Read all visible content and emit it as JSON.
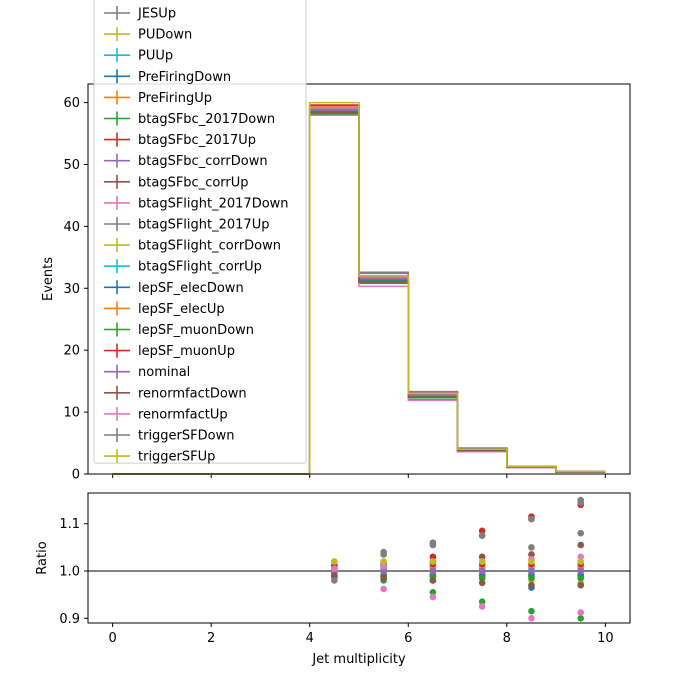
{
  "chart_data": [
    {
      "type": "line",
      "subtype": "step",
      "title": "",
      "xlabel": "",
      "ylabel": "Events",
      "xlim": [
        -0.5,
        10.5
      ],
      "ylim": [
        0,
        63
      ],
      "xticks": [
        "0",
        "2",
        "4",
        "6",
        "8",
        "10"
      ],
      "xtick_values": [
        0,
        2,
        4,
        6,
        8,
        10
      ],
      "yticks": [
        "0",
        "10",
        "20",
        "30",
        "40",
        "50",
        "60"
      ],
      "ytick_values": [
        0,
        10,
        20,
        30,
        40,
        50,
        60
      ],
      "bin_edges": [
        0,
        1,
        2,
        3,
        4,
        5,
        6,
        7,
        8,
        9,
        10
      ],
      "legend_position": "upper-left",
      "series": [
        {
          "name": "JESUp",
          "color": "#7f7f7f",
          "values": [
            0,
            0,
            0,
            0,
            58.6,
            31.8,
            13.0,
            4.0,
            1.2,
            0.4
          ]
        },
        {
          "name": "PUDown",
          "color": "#bcbd22",
          "values": [
            0,
            0,
            0,
            0,
            59.3,
            31.0,
            12.6,
            3.9,
            1.1,
            0.3
          ]
        },
        {
          "name": "PUUp",
          "color": "#17becf",
          "values": [
            0,
            0,
            0,
            0,
            58.6,
            31.4,
            12.7,
            3.9,
            1.1,
            0.3
          ]
        },
        {
          "name": "PreFiringDown",
          "color": "#1f77b4",
          "values": [
            0,
            0,
            0,
            0,
            58.8,
            31.5,
            12.7,
            3.9,
            1.1,
            0.3
          ]
        },
        {
          "name": "PreFiringUp",
          "color": "#ff7f0e",
          "values": [
            0,
            0,
            0,
            0,
            59.2,
            31.8,
            12.9,
            4.0,
            1.1,
            0.3
          ]
        },
        {
          "name": "btagSFbc_2017Down",
          "color": "#2ca02c",
          "values": [
            0,
            0,
            0,
            0,
            58.3,
            30.8,
            12.1,
            3.7,
            1.0,
            0.3
          ]
        },
        {
          "name": "btagSFbc_2017Up",
          "color": "#d62728",
          "values": [
            0,
            0,
            0,
            0,
            59.5,
            32.0,
            13.1,
            4.1,
            1.2,
            0.4
          ]
        },
        {
          "name": "btagSFbc_corrDown",
          "color": "#9467bd",
          "values": [
            0,
            0,
            0,
            0,
            58.7,
            31.2,
            12.4,
            3.8,
            1.1,
            0.3
          ]
        },
        {
          "name": "btagSFbc_corrUp",
          "color": "#8c564b",
          "values": [
            0,
            0,
            0,
            0,
            59.1,
            31.9,
            13.0,
            4.0,
            1.2,
            0.4
          ]
        },
        {
          "name": "btagSFlight_2017Down",
          "color": "#e377c2",
          "values": [
            0,
            0,
            0,
            0,
            58.1,
            30.3,
            11.9,
            3.6,
            1.0,
            0.3
          ]
        },
        {
          "name": "btagSFlight_2017Up",
          "color": "#7f7f7f",
          "values": [
            0,
            0,
            0,
            0,
            59.4,
            32.4,
            13.2,
            4.1,
            1.2,
            0.4
          ]
        },
        {
          "name": "btagSFlight_corrDown",
          "color": "#bcbd22",
          "values": [
            0,
            0,
            0,
            0,
            59.0,
            31.3,
            12.6,
            3.9,
            1.1,
            0.3
          ]
        },
        {
          "name": "btagSFlight_corrUp",
          "color": "#17becf",
          "values": [
            0,
            0,
            0,
            0,
            58.9,
            31.6,
            12.8,
            3.9,
            1.1,
            0.3
          ]
        },
        {
          "name": "lepSF_elecDown",
          "color": "#1f77b4",
          "values": [
            0,
            0,
            0,
            0,
            58.5,
            31.3,
            12.6,
            3.9,
            1.1,
            0.3
          ]
        },
        {
          "name": "lepSF_elecUp",
          "color": "#ff7f0e",
          "values": [
            0,
            0,
            0,
            0,
            59.3,
            31.7,
            12.8,
            3.9,
            1.1,
            0.3
          ]
        },
        {
          "name": "lepSF_muonDown",
          "color": "#2ca02c",
          "values": [
            0,
            0,
            0,
            0,
            58.2,
            31.1,
            12.5,
            3.8,
            1.1,
            0.3
          ]
        },
        {
          "name": "lepSF_muonUp",
          "color": "#d62728",
          "values": [
            0,
            0,
            0,
            0,
            59.6,
            31.9,
            12.9,
            4.0,
            1.2,
            0.4
          ]
        },
        {
          "name": "nominal",
          "color": "#9467bd",
          "values": [
            0,
            0,
            0,
            0,
            58.9,
            31.5,
            12.7,
            3.9,
            1.1,
            0.3
          ]
        },
        {
          "name": "renormfactDown",
          "color": "#8c564b",
          "values": [
            0,
            0,
            0,
            0,
            58.4,
            31.0,
            12.4,
            3.8,
            1.1,
            0.3
          ]
        },
        {
          "name": "renormfactUp",
          "color": "#e377c2",
          "values": [
            0,
            0,
            0,
            0,
            59.2,
            31.9,
            13.0,
            4.0,
            1.2,
            0.4
          ]
        },
        {
          "name": "triggerSFDown",
          "color": "#7f7f7f",
          "values": [
            0,
            0,
            0,
            0,
            58.0,
            32.6,
            13.3,
            4.2,
            1.2,
            0.4
          ]
        },
        {
          "name": "triggerSFUp",
          "color": "#bcbd22",
          "values": [
            0,
            0,
            0,
            0,
            60.0,
            32.0,
            13.0,
            4.0,
            1.2,
            0.4
          ]
        }
      ]
    },
    {
      "type": "scatter",
      "title": "",
      "xlabel": "Jet multiplicity",
      "ylabel": "Ratio",
      "xlim": [
        -0.5,
        10.5
      ],
      "ylim": [
        0.89,
        1.165
      ],
      "xticks": [
        "0",
        "2",
        "4",
        "6",
        "8",
        "10"
      ],
      "xtick_values": [
        0,
        2,
        4,
        6,
        8,
        10
      ],
      "yticks": [
        "0.9",
        "1.0",
        "1.1"
      ],
      "ytick_values": [
        0.9,
        1.0,
        1.1
      ],
      "reference_line": 1.0,
      "x": [
        4.5,
        5.5,
        6.5,
        7.5,
        8.5,
        9.5
      ],
      "series": [
        {
          "name": "JESUp",
          "color": "#7f7f7f",
          "values": [
            0.995,
            1.01,
            1.02,
            1.03,
            1.05,
            1.08
          ]
        },
        {
          "name": "PUDown",
          "color": "#bcbd22",
          "values": [
            1.02,
            0.985,
            0.99,
            0.985,
            0.98,
            0.975
          ]
        },
        {
          "name": "PUUp",
          "color": "#17becf",
          "values": [
            0.995,
            0.995,
            1.0,
            1.0,
            0.995,
            0.99
          ]
        },
        {
          "name": "PreFiringDown",
          "color": "#1f77b4",
          "values": [
            0.998,
            1.0,
            1.0,
            0.995,
            0.965,
            0.97
          ]
        },
        {
          "name": "PreFiringUp",
          "color": "#ff7f0e",
          "values": [
            1.005,
            1.01,
            1.01,
            1.01,
            1.01,
            1.01
          ]
        },
        {
          "name": "btagSFbc_2017Down",
          "color": "#2ca02c",
          "values": [
            0.99,
            0.98,
            0.955,
            0.935,
            0.915,
            0.9
          ]
        },
        {
          "name": "btagSFbc_2017Up",
          "color": "#d62728",
          "values": [
            1.01,
            1.015,
            1.03,
            1.085,
            1.115,
            1.14
          ]
        },
        {
          "name": "btagSFbc_corrDown",
          "color": "#9467bd",
          "values": [
            0.995,
            0.99,
            0.98,
            0.99,
            0.99,
            0.985
          ]
        },
        {
          "name": "btagSFbc_corrUp",
          "color": "#8c564b",
          "values": [
            1.005,
            1.015,
            1.02,
            1.03,
            1.035,
            1.055
          ]
        },
        {
          "name": "btagSFlight_2017Down",
          "color": "#e377c2",
          "values": [
            0.985,
            0.962,
            0.945,
            0.925,
            0.9,
            0.912
          ]
        },
        {
          "name": "btagSFlight_2017Up",
          "color": "#7f7f7f",
          "values": [
            1.01,
            1.04,
            1.055,
            1.075,
            1.11,
            1.145
          ]
        },
        {
          "name": "btagSFlight_corrDown",
          "color": "#bcbd22",
          "values": [
            1.0,
            0.995,
            0.995,
            0.995,
            0.995,
            0.995
          ]
        },
        {
          "name": "btagSFlight_corrUp",
          "color": "#17becf",
          "values": [
            1.0,
            1.005,
            1.005,
            1.005,
            1.005,
            1.005
          ]
        },
        {
          "name": "lepSF_elecDown",
          "color": "#1f77b4",
          "values": [
            0.99,
            0.99,
            0.99,
            0.99,
            0.99,
            0.99
          ]
        },
        {
          "name": "lepSF_elecUp",
          "color": "#ff7f0e",
          "values": [
            1.01,
            1.01,
            1.01,
            1.01,
            1.01,
            1.01
          ]
        },
        {
          "name": "lepSF_muonDown",
          "color": "#2ca02c",
          "values": [
            0.988,
            0.988,
            0.988,
            0.985,
            0.985,
            0.985
          ]
        },
        {
          "name": "lepSF_muonUp",
          "color": "#d62728",
          "values": [
            1.012,
            1.012,
            1.015,
            1.015,
            1.015,
            1.015
          ]
        },
        {
          "name": "nominal",
          "color": "#9467bd",
          "values": [
            1.0,
            1.0,
            1.0,
            1.0,
            1.0,
            1.0
          ]
        },
        {
          "name": "renormfactDown",
          "color": "#8c564b",
          "values": [
            0.99,
            0.985,
            0.98,
            0.975,
            0.97,
            0.97
          ]
        },
        {
          "name": "renormfactUp",
          "color": "#e377c2",
          "values": [
            1.005,
            1.01,
            1.02,
            1.02,
            1.025,
            1.03
          ]
        },
        {
          "name": "triggerSFDown",
          "color": "#7f7f7f",
          "values": [
            0.98,
            1.035,
            1.06,
            1.075,
            1.11,
            1.15
          ]
        },
        {
          "name": "triggerSFUp",
          "color": "#bcbd22",
          "values": [
            1.02,
            1.02,
            1.02,
            1.02,
            1.02,
            1.02
          ]
        }
      ]
    }
  ]
}
